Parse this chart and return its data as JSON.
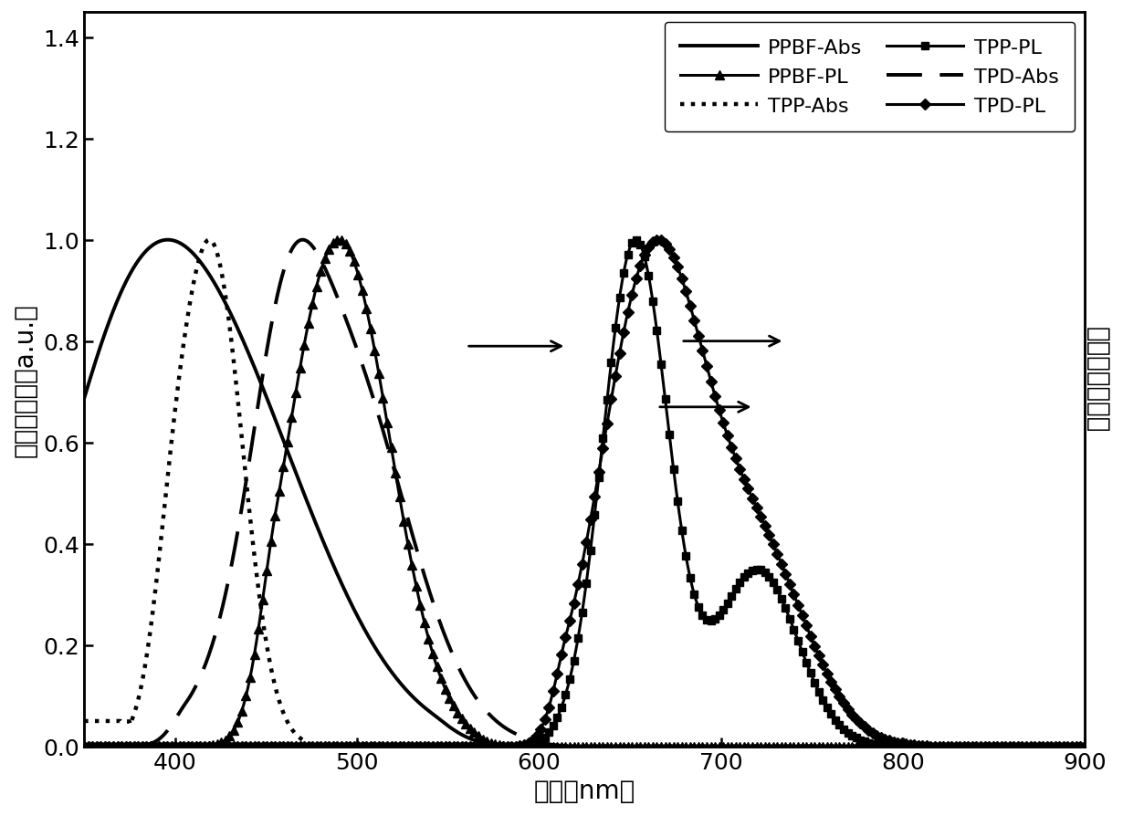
{
  "title": "",
  "xlabel": "波长（nm）",
  "ylabel_left": "归一化吸收（a.u.）",
  "ylabel_right": "归一化荧光强度",
  "xlim": [
    350,
    900
  ],
  "ylim": [
    0.0,
    1.45
  ],
  "xticks": [
    400,
    500,
    600,
    700,
    800,
    900
  ],
  "yticks": [
    0.0,
    0.2,
    0.4,
    0.6,
    0.8,
    1.0,
    1.2,
    1.4
  ],
  "color": "#000000",
  "fontsize_label": 20,
  "fontsize_tick": 18,
  "fontsize_legend": 16,
  "lw_abs": 2.8,
  "lw_pl": 2.2,
  "markersize": 7,
  "marker_every": 12
}
